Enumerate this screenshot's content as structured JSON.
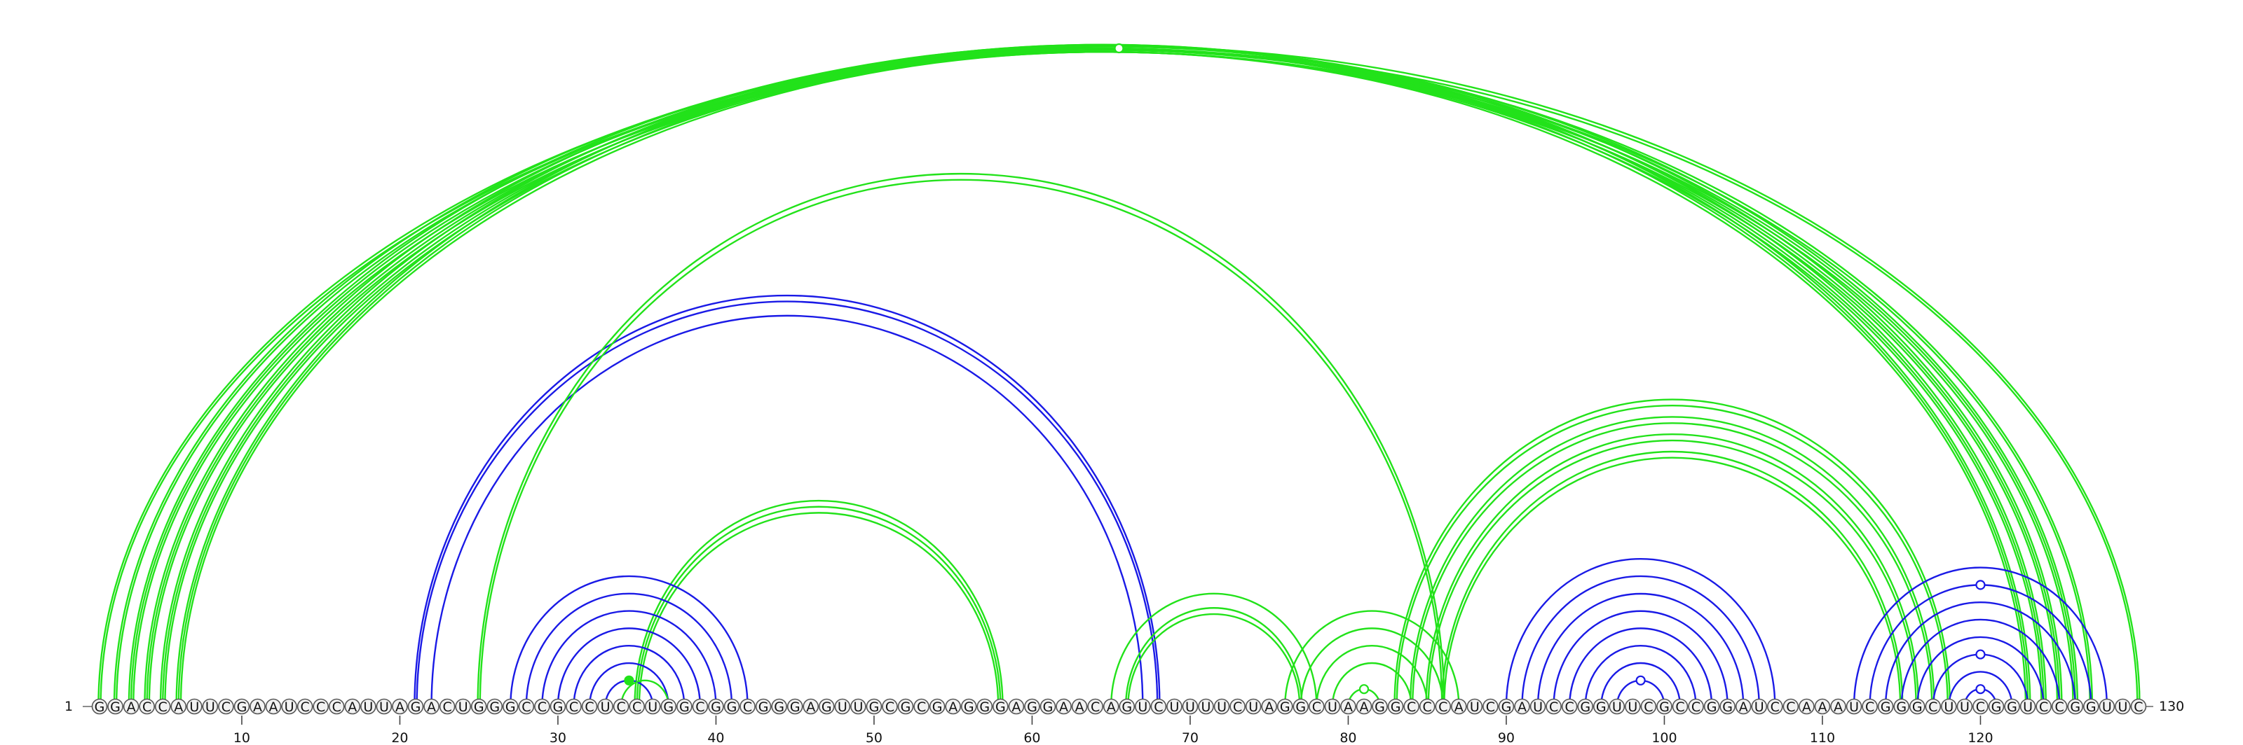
{
  "sequence": "GGACCAUUCGAAUCCCAUUAGACUGGGCCGCCUCCUGGCGGCGGGAGUUGCGCGAGGGAGGAACAGUCUUUUCUAGGCUAAGGCCCAUCGAUCCGGUUCGCCGGAUCCAAAUCGGGCUUCGGUCCGGUUC",
  "start_label": "1",
  "end_label": "130",
  "ticks": [
    "10",
    "20",
    "30",
    "40",
    "50",
    "60",
    "70",
    "80",
    "90",
    "100",
    "110",
    "120"
  ],
  "colors": {
    "green": "#22e21a",
    "blue": "#1a1ae6"
  },
  "arcs": [
    {
      "i": 1,
      "j": 130,
      "color": "green",
      "n": 2
    },
    {
      "i": 2,
      "j": 127,
      "color": "green",
      "n": 2
    },
    {
      "i": 3,
      "j": 126,
      "color": "green",
      "n": 3
    },
    {
      "i": 4,
      "j": 125,
      "color": "green",
      "n": 3
    },
    {
      "i": 5,
      "j": 124,
      "color": "green",
      "n": 3
    },
    {
      "i": 6,
      "j": 123,
      "color": "green",
      "n": 3
    },
    {
      "i": 21,
      "j": 68,
      "color": "blue",
      "n": 2
    },
    {
      "i": 22,
      "j": 67,
      "color": "blue",
      "n": 1
    },
    {
      "i": 25,
      "j": 86,
      "color": "green",
      "n": 2
    },
    {
      "i": 35,
      "j": 58,
      "color": "green",
      "n": 3
    },
    {
      "i": 27,
      "j": 42,
      "color": "blue",
      "n": 1
    },
    {
      "i": 28,
      "j": 41,
      "color": "blue",
      "n": 1
    },
    {
      "i": 29,
      "j": 40,
      "color": "blue",
      "n": 1
    },
    {
      "i": 30,
      "j": 39,
      "color": "blue",
      "n": 1
    },
    {
      "i": 31,
      "j": 38,
      "color": "blue",
      "n": 1
    },
    {
      "i": 32,
      "j": 37,
      "color": "blue",
      "n": 1
    },
    {
      "i": 33,
      "j": 36,
      "color": "blue",
      "n": 1
    },
    {
      "i": 34,
      "j": 37,
      "color": "green",
      "n": 1
    },
    {
      "i": 65,
      "j": 78,
      "color": "green",
      "n": 1
    },
    {
      "i": 66,
      "j": 77,
      "color": "green",
      "n": 2
    },
    {
      "i": 76,
      "j": 87,
      "color": "green",
      "n": 1
    },
    {
      "i": 77,
      "j": 86,
      "color": "green",
      "n": 1
    },
    {
      "i": 78,
      "j": 85,
      "color": "green",
      "n": 1
    },
    {
      "i": 79,
      "j": 84,
      "color": "green",
      "n": 1
    },
    {
      "i": 80,
      "j": 82,
      "color": "green",
      "n": 1
    },
    {
      "i": 83,
      "j": 118,
      "color": "green",
      "n": 2
    },
    {
      "i": 84,
      "j": 117,
      "color": "green",
      "n": 2
    },
    {
      "i": 85,
      "j": 116,
      "color": "green",
      "n": 2
    },
    {
      "i": 86,
      "j": 115,
      "color": "green",
      "n": 2
    },
    {
      "i": 90,
      "j": 107,
      "color": "blue",
      "n": 1
    },
    {
      "i": 91,
      "j": 106,
      "color": "blue",
      "n": 1
    },
    {
      "i": 92,
      "j": 105,
      "color": "blue",
      "n": 1
    },
    {
      "i": 93,
      "j": 104,
      "color": "blue",
      "n": 1
    },
    {
      "i": 94,
      "j": 103,
      "color": "blue",
      "n": 1
    },
    {
      "i": 95,
      "j": 102,
      "color": "blue",
      "n": 1
    },
    {
      "i": 96,
      "j": 101,
      "color": "blue",
      "n": 1
    },
    {
      "i": 97,
      "j": 100,
      "color": "blue",
      "n": 1
    },
    {
      "i": 112,
      "j": 128,
      "color": "blue",
      "n": 1
    },
    {
      "i": 113,
      "j": 127,
      "color": "blue",
      "n": 1
    },
    {
      "i": 114,
      "j": 126,
      "color": "blue",
      "n": 1
    },
    {
      "i": 115,
      "j": 125,
      "color": "blue",
      "n": 1
    },
    {
      "i": 116,
      "j": 124,
      "color": "blue",
      "n": 1
    },
    {
      "i": 117,
      "j": 123,
      "color": "blue",
      "n": 1
    },
    {
      "i": 118,
      "j": 122,
      "color": "blue",
      "n": 1
    },
    {
      "i": 119,
      "j": 121,
      "color": "blue",
      "n": 1
    }
  ],
  "markers": [
    {
      "pos": 65.5,
      "arc": [
        1,
        130
      ],
      "color": "green",
      "filled": false
    },
    {
      "pos": 34.5,
      "arc": [
        34,
        37
      ],
      "color": "green",
      "filled": true
    },
    {
      "pos": 81,
      "arc": [
        80,
        82
      ],
      "color": "green",
      "filled": false
    },
    {
      "pos": 98.5,
      "arc": [
        97,
        100
      ],
      "color": "blue",
      "filled": false
    },
    {
      "pos": 120,
      "arc": [
        119,
        121
      ],
      "color": "blue",
      "filled": false
    },
    {
      "pos": 120,
      "arc": [
        117,
        123
      ],
      "color": "blue",
      "filled": false
    },
    {
      "pos": 120,
      "arc": [
        113,
        127
      ],
      "color": "blue",
      "filled": false
    }
  ]
}
